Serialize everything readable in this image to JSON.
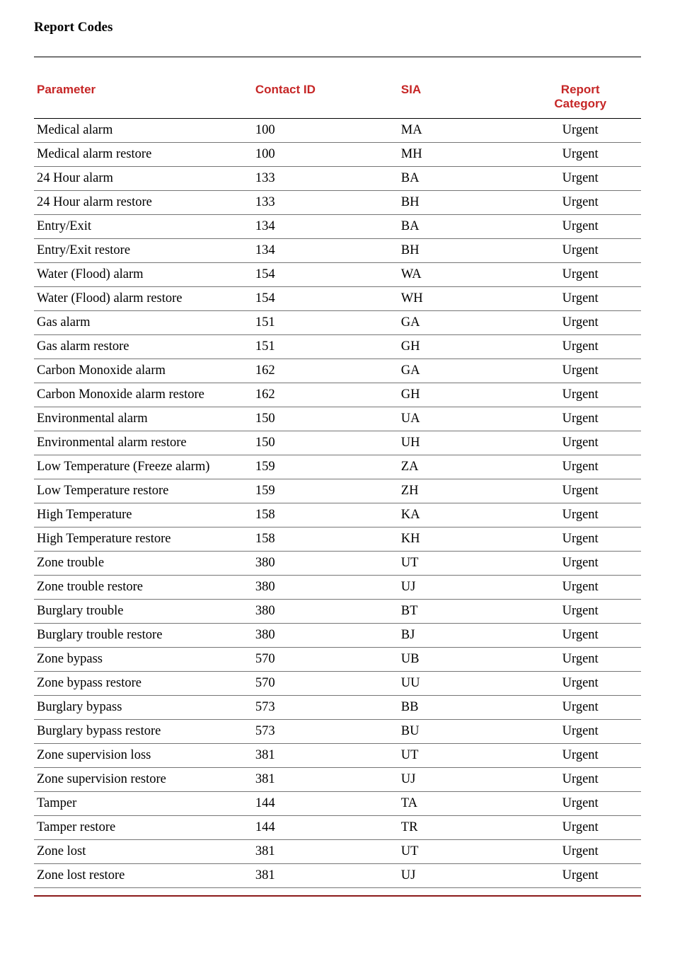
{
  "title": "Report Codes",
  "header_color": "#c62626",
  "columns": {
    "param": "Parameter",
    "contact": "Contact ID",
    "sia": "SIA",
    "report": "Report\nCategory"
  },
  "rows": [
    {
      "param": "Medical alarm",
      "contact": "100",
      "sia": "MA",
      "report": "Urgent"
    },
    {
      "param": "Medical alarm restore",
      "contact": "100",
      "sia": "MH",
      "report": "Urgent"
    },
    {
      "param": "24 Hour alarm",
      "contact": "133",
      "sia": "BA",
      "report": "Urgent"
    },
    {
      "param": "24 Hour alarm restore",
      "contact": "133",
      "sia": "BH",
      "report": "Urgent"
    },
    {
      "param": "Entry/Exit",
      "contact": "134",
      "sia": "BA",
      "report": "Urgent"
    },
    {
      "param": "Entry/Exit restore",
      "contact": "134",
      "sia": "BH",
      "report": "Urgent"
    },
    {
      "param": "Water (Flood) alarm",
      "contact": "154",
      "sia": "WA",
      "report": "Urgent"
    },
    {
      "param": "Water (Flood) alarm restore",
      "contact": "154",
      "sia": "WH",
      "report": "Urgent"
    },
    {
      "param": "Gas alarm",
      "contact": "151",
      "sia": "GA",
      "report": "Urgent"
    },
    {
      "param": "Gas alarm restore",
      "contact": "151",
      "sia": "GH",
      "report": "Urgent"
    },
    {
      "param": "Carbon Monoxide alarm",
      "contact": "162",
      "sia": "GA",
      "report": "Urgent"
    },
    {
      "param": "Carbon Monoxide alarm restore",
      "contact": "162",
      "sia": "GH",
      "report": "Urgent"
    },
    {
      "param": "Environmental alarm",
      "contact": "150",
      "sia": "UA",
      "report": "Urgent"
    },
    {
      "param": "Environmental alarm restore",
      "contact": "150",
      "sia": "UH",
      "report": "Urgent"
    },
    {
      "param": "Low Temperature (Freeze alarm)",
      "contact": "159",
      "sia": "ZA",
      "report": "Urgent"
    },
    {
      "param": "Low Temperature restore",
      "contact": "159",
      "sia": "ZH",
      "report": "Urgent"
    },
    {
      "param": "High Temperature",
      "contact": "158",
      "sia": "KA",
      "report": "Urgent"
    },
    {
      "param": "High Temperature restore",
      "contact": "158",
      "sia": "KH",
      "report": "Urgent"
    },
    {
      "param": "Zone trouble",
      "contact": "380",
      "sia": "UT",
      "report": "Urgent"
    },
    {
      "param": "Zone trouble restore",
      "contact": "380",
      "sia": "UJ",
      "report": "Urgent"
    },
    {
      "param": "Burglary trouble",
      "contact": "380",
      "sia": "BT",
      "report": "Urgent"
    },
    {
      "param": "Burglary trouble restore",
      "contact": "380",
      "sia": "BJ",
      "report": "Urgent"
    },
    {
      "param": "Zone bypass",
      "contact": "570",
      "sia": "UB",
      "report": "Urgent"
    },
    {
      "param": "Zone bypass restore",
      "contact": "570",
      "sia": "UU",
      "report": "Urgent"
    },
    {
      "param": "Burglary bypass",
      "contact": "573",
      "sia": "BB",
      "report": "Urgent"
    },
    {
      "param": "Burglary bypass restore",
      "contact": "573",
      "sia": "BU",
      "report": "Urgent"
    },
    {
      "param": "Zone supervision loss",
      "contact": "381",
      "sia": "UT",
      "report": "Urgent"
    },
    {
      "param": "Zone supervision restore",
      "contact": "381",
      "sia": "UJ",
      "report": "Urgent"
    },
    {
      "param": "Tamper",
      "contact": "144",
      "sia": "TA",
      "report": "Urgent"
    },
    {
      "param": "Tamper restore",
      "contact": "144",
      "sia": "TR",
      "report": "Urgent"
    },
    {
      "param": "Zone lost",
      "contact": "381",
      "sia": "UT",
      "report": "Urgent"
    },
    {
      "param": "Zone lost restore",
      "contact": "381",
      "sia": "UJ",
      "report": "Urgent"
    }
  ]
}
